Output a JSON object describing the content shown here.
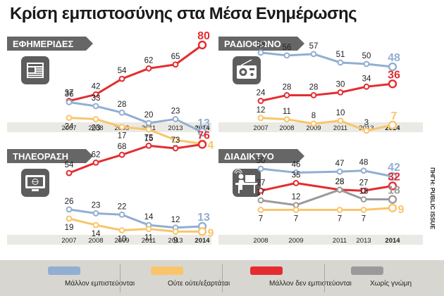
{
  "title": "Κρίση εμπιστοσύνης στα Μέσα Ενημέρωσης",
  "source_note": "ΠΗΓΗ: PUBLIC ISSUE",
  "colors": {
    "trust": "#92aed1",
    "neither": "#f9c56a",
    "distrust": "#e42c30",
    "noanswer": "#9a9a9a",
    "panel_label_bg": "#666666",
    "icon_bg": "#5d5d5d",
    "axis_bg": "#ebe9e4",
    "legend_bg": "#d8d6d0"
  },
  "legend": [
    {
      "key": "trust",
      "label": "Μάλλον εμπιστεύονται"
    },
    {
      "key": "neither",
      "label": "Ούτε ούτε/εξαρτάται"
    },
    {
      "key": "distrust",
      "label": "Μάλλον δεν εμπιστεύονται"
    },
    {
      "key": "noanswer",
      "label": "Χωρίς γνώμη"
    }
  ],
  "chart_data": [
    {
      "type": "line",
      "title": "ΕΦΗΜΕΡΙΔΕΣ",
      "icon": "newspaper-icon",
      "x": [
        "2007",
        "2008",
        "2009",
        "2011",
        "2013",
        "2014"
      ],
      "series": [
        {
          "name": "Μάλλον δεν εμπιστεύονται",
          "key": "distrust",
          "values": [
            37,
            42,
            54,
            62,
            65,
            80
          ]
        },
        {
          "name": "Μάλλον εμπιστεύονται",
          "key": "trust",
          "values": [
            36,
            33,
            28,
            20,
            23,
            13
          ]
        },
        {
          "name": "Ούτε ούτε/εξαρτάται",
          "key": "neither",
          "values": [
            24,
            23,
            17,
            15,
            7,
            4
          ]
        }
      ]
    },
    {
      "type": "line",
      "title": "ΡΑΔΙΟΦΩΝΟ",
      "icon": "radio-icon",
      "x": [
        "2007",
        "2008",
        "2009",
        "2011",
        "2013",
        "2014"
      ],
      "series": [
        {
          "name": "Μάλλον εμπιστεύονται",
          "key": "trust",
          "values": [
            58,
            56,
            57,
            51,
            50,
            48
          ]
        },
        {
          "name": "Μάλλον δεν εμπιστεύονται",
          "key": "distrust",
          "values": [
            24,
            28,
            28,
            30,
            34,
            36
          ]
        },
        {
          "name": "Ούτε ούτε/εξαρτάται",
          "key": "neither",
          "values": [
            12,
            11,
            8,
            10,
            3,
            7
          ]
        }
      ]
    },
    {
      "type": "line",
      "title": "ΤΗΛΕΟΡΑΣΗ",
      "icon": "tv-icon",
      "x": [
        "2007",
        "2008",
        "2009",
        "2011",
        "2013",
        "2014"
      ],
      "series": [
        {
          "name": "Μάλλον δεν εμπιστεύονται",
          "key": "distrust",
          "values": [
            54,
            62,
            68,
            75,
            73,
            76
          ]
        },
        {
          "name": "Μάλλον εμπιστεύονται",
          "key": "trust",
          "values": [
            26,
            23,
            22,
            14,
            12,
            13
          ]
        },
        {
          "name": "Ούτε ούτε/εξαρτάται",
          "key": "neither",
          "values": [
            19,
            14,
            10,
            11,
            9,
            9
          ]
        }
      ]
    },
    {
      "type": "line",
      "title": "ΔΙΑΔΙΚΤΥΟ",
      "icon": "computer-user-icon",
      "x": [
        "2008",
        "2009",
        "2011",
        "2013",
        "2014"
      ],
      "series": [
        {
          "name": "Μάλλον εμπιστεύονται",
          "key": "trust",
          "values": [
            50,
            46,
            47,
            48,
            42
          ]
        },
        {
          "name": "Μάλλον δεν εμπιστεύονται",
          "key": "distrust",
          "values": [
            27,
            35,
            28,
            27,
            32
          ]
        },
        {
          "name": "Χωρίς γνώμη",
          "key": "noanswer",
          "values": [
            17,
            12,
            28,
            18,
            18
          ]
        },
        {
          "name": "Ούτε ούτε/εξαρτάται",
          "key": "neither",
          "values": [
            7,
            7,
            7,
            7,
            9
          ]
        }
      ]
    }
  ]
}
